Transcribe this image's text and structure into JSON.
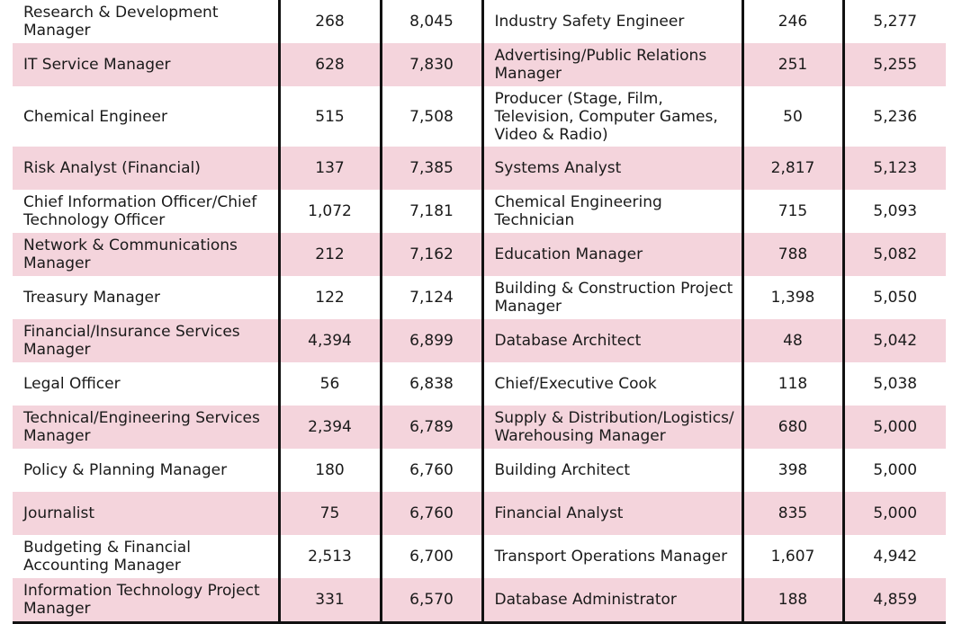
{
  "rows": [
    {
      "job_a": "Research & Development Manager",
      "count_a": "268",
      "salary_a": "8,045",
      "job_b": "Industry Safety Engineer",
      "count_b": "246",
      "salary_b": "5,277"
    },
    {
      "job_a": "IT Service Manager",
      "count_a": "628",
      "salary_a": "7,830",
      "job_b": "Advertising/Public Relations Manager",
      "count_b": "251",
      "salary_b": "5,255"
    },
    {
      "job_a": "Chemical Engineer",
      "count_a": "515",
      "salary_a": "7,508",
      "job_b": "Producer (Stage, Film, Television, Computer Games, Video & Radio)",
      "count_b": "50",
      "salary_b": "5,236"
    },
    {
      "job_a": "Risk Analyst (Financial)",
      "count_a": "137",
      "salary_a": "7,385",
      "job_b": "Systems Analyst",
      "count_b": "2,817",
      "salary_b": "5,123"
    },
    {
      "job_a": "Chief Information Officer/Chief Technology Officer",
      "count_a": "1,072",
      "salary_a": "7,181",
      "job_b": "Chemical Engineering Technician",
      "count_b": "715",
      "salary_b": "5,093"
    },
    {
      "job_a": "Network & Communications Manager",
      "count_a": "212",
      "salary_a": "7,162",
      "job_b": "Education Manager",
      "count_b": "788",
      "salary_b": "5,082"
    },
    {
      "job_a": "Treasury Manager",
      "count_a": "122",
      "salary_a": "7,124",
      "job_b": "Building & Construction Project Manager",
      "count_b": "1,398",
      "salary_b": "5,050"
    },
    {
      "job_a": "Financial/Insurance Services Manager",
      "count_a": "4,394",
      "salary_a": "6,899",
      "job_b": "Database Architect",
      "count_b": "48",
      "salary_b": "5,042"
    },
    {
      "job_a": "Legal Officer",
      "count_a": "56",
      "salary_a": "6,838",
      "job_b": "Chief/Executive Cook",
      "count_b": "118",
      "salary_b": "5,038"
    },
    {
      "job_a": "Technical/Engineering Services Manager",
      "count_a": "2,394",
      "salary_a": "6,789",
      "job_b": "Supply & Distribution/Logistics/ Warehousing Manager",
      "count_b": "680",
      "salary_b": "5,000"
    },
    {
      "job_a": "Policy & Planning Manager",
      "count_a": "180",
      "salary_a": "6,760",
      "job_b": "Building Architect",
      "count_b": "398",
      "salary_b": "5,000"
    },
    {
      "job_a": "Journalist",
      "count_a": "75",
      "salary_a": "6,760",
      "job_b": "Financial Analyst",
      "count_b": "835",
      "salary_b": "5,000"
    },
    {
      "job_a": "Budgeting & Financial Accounting Manager",
      "count_a": "2,513",
      "salary_a": "6,700",
      "job_b": "Transport Operations Manager",
      "count_b": "1,607",
      "salary_b": "4,942"
    },
    {
      "job_a": "Information Technology Project Manager",
      "count_a": "331",
      "salary_a": "6,570",
      "job_b": "Database Administrator",
      "count_b": "188",
      "salary_b": "4,859"
    }
  ],
  "colors": {
    "row_shade": "#f4d4dc",
    "separator": "#111111"
  }
}
